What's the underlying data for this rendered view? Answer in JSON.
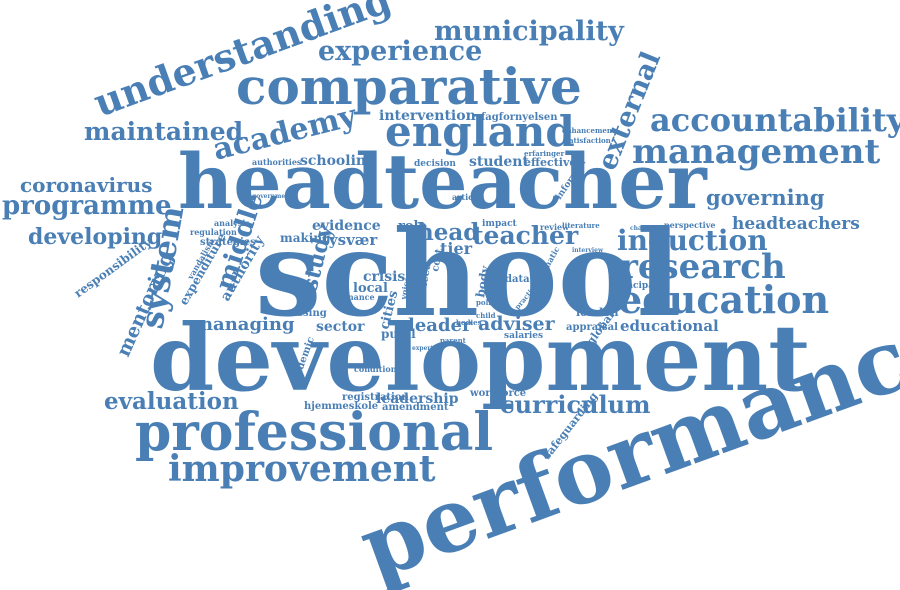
{
  "colors": {
    "word": "#4a7fb5",
    "background": "#ffffff"
  },
  "words": {
    "performance": "performance",
    "development": "development",
    "school": "school",
    "headteacher": "headteacher",
    "comparative": "comparative",
    "professional": "professional",
    "improvement": "improvement",
    "understanding": "understanding",
    "experience": "experience",
    "municipality": "municipality",
    "england": "england",
    "academy": "academy",
    "maintained": "maintained",
    "accountability": "accountability",
    "management": "management",
    "external": "external",
    "coronavirus": "coronavirus",
    "programme": "programme",
    "developing": "developing",
    "system": "system",
    "middle": "middle",
    "study": "study",
    "responsibility": "responsibility",
    "mentoring": "mentoring",
    "evaluation": "evaluation",
    "governing": "governing",
    "headteachers": "headteachers",
    "induction": "induction",
    "research": "research",
    "education": "education",
    "educational": "educational",
    "curriculum": "curriculum",
    "leadership": "leadership",
    "managing": "managing",
    "head": "head",
    "teacher": "teacher",
    "tier": "tier",
    "leader": "leader",
    "adviser": "adviser",
    "pupil": "pupil",
    "cities": "cities",
    "sector": "sector",
    "authority": "authority",
    "expenditure": "expenditure",
    "tysvaer": "tysvær",
    "evidence": "evidence",
    "role": "role",
    "making": "making",
    "strategies": "strategies",
    "regulation": "regulation",
    "analysis": "analysis",
    "vandalism": "vandalism",
    "schooling": "schooling",
    "authorities": "authorities",
    "intervention": "intervention",
    "fagfornyelsen": "fagfornyelsen",
    "student": "student",
    "effective": "effective",
    "decision": "decision",
    "informed": "informed",
    "enhancement": "enhancement",
    "satisfaction": "satisfaction",
    "erfaringer": "erfaringer",
    "crisis": "crisis",
    "local": "local",
    "finance": "finance",
    "missing": "missing",
    "condition": "condition",
    "registration": "registration",
    "hjemmeskole": "hjemmeskole",
    "amendment": "amendment",
    "workforce": "workforce",
    "safeguarding": "safeguarding",
    "academic": "academic",
    "global": "global",
    "london": "london",
    "appraisal": "appraisal",
    "salaries": "salaries",
    "principal": "principal",
    "perspective": "perspective",
    "challenging": "challenging",
    "review": "review",
    "literature": "literature",
    "impact": "impact",
    "data": "data",
    "need": "need",
    "cost": "cost",
    "body": "body",
    "child": "child",
    "policy": "policy",
    "systematic": "systematic",
    "practice": "practice",
    "voice": "voice",
    "bodies": "bodies",
    "parent": "parent",
    "expertise": "expertise",
    "article": "article",
    "government": "government",
    "interview": "interview"
  }
}
